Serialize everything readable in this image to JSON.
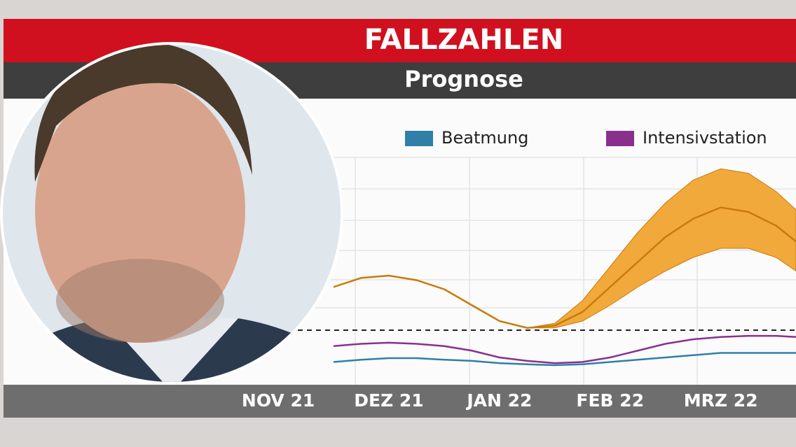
{
  "chart_data": {
    "type": "line",
    "title": "FALLZAHLEN",
    "subtitle": "Prognose",
    "x": [
      0.5,
      0.75,
      1.0,
      1.25,
      1.5,
      1.75,
      2.0,
      2.25,
      2.5,
      2.75,
      3.0,
      3.25,
      3.5,
      3.75,
      4.0,
      4.25,
      4.5,
      4.68
    ],
    "xlim": [
      -0.33,
      4.68
    ],
    "xticks": [
      {
        "value": 0,
        "label": "NOV 21"
      },
      {
        "value": 1,
        "label": "DEZ 21"
      },
      {
        "value": 2,
        "label": "JAN 22"
      },
      {
        "value": 3,
        "label": "FEB 22"
      },
      {
        "value": 4,
        "label": "MRZ 22"
      }
    ],
    "ylim": [
      0,
      100
    ],
    "threshold": 24,
    "series": [
      {
        "color": "#c97a0a",
        "band_color": "#f2a93b",
        "values": [
          43,
          47,
          48,
          46,
          42,
          35,
          28,
          25,
          26,
          32,
          43,
          54,
          65,
          73,
          78,
          76,
          70,
          63
        ],
        "lower": [
          null,
          null,
          null,
          null,
          null,
          null,
          null,
          25,
          25,
          28,
          35,
          43,
          50,
          56,
          60,
          60,
          56,
          50
        ],
        "upper": [
          null,
          null,
          null,
          null,
          null,
          null,
          null,
          25,
          27,
          37,
          52,
          67,
          80,
          90,
          95,
          93,
          85,
          77
        ]
      },
      {
        "name": "Beatmung",
        "color": "#2f7fa8",
        "values": [
          10,
          11,
          11.7,
          11.7,
          11,
          10.5,
          9.5,
          9,
          8.6,
          9,
          10,
          11,
          12,
          13,
          14,
          14,
          14,
          14
        ]
      },
      {
        "name": "Intensivstation",
        "color": "#8b2f8f",
        "values": [
          17,
          18,
          18.5,
          18,
          17,
          15,
          12,
          10.5,
          9.5,
          10,
          12,
          15,
          18,
          20,
          21,
          21.5,
          21.5,
          21
        ]
      }
    ]
  }
}
